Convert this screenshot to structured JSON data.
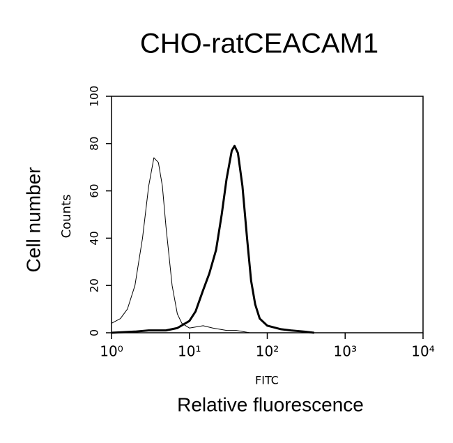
{
  "chart_data": {
    "type": "line",
    "title": "CHO-ratCEACAM1",
    "xlabel": "FITC",
    "ylabel": "Counts",
    "annotations": [
      "Cell number",
      "Relative fluorescence"
    ],
    "xscale": "log",
    "xlim": [
      1,
      10000
    ],
    "xticks": [
      {
        "value": 1,
        "label": "10⁰"
      },
      {
        "value": 10,
        "label": "10¹"
      },
      {
        "value": 100,
        "label": "10²"
      },
      {
        "value": 1000,
        "label": "10³"
      },
      {
        "value": 10000,
        "label": "10⁴"
      }
    ],
    "ylim": [
      0,
      100
    ],
    "yticks": [
      0,
      20,
      40,
      60,
      80,
      100
    ],
    "grid": false,
    "series": [
      {
        "color": "#000000",
        "width": 1,
        "x": [
          1,
          1.3,
          1.6,
          2,
          2.5,
          3,
          3.5,
          4,
          4.5,
          5,
          6,
          7,
          8,
          10,
          15,
          20,
          30,
          40,
          60,
          100
        ],
        "values": [
          4,
          6,
          10,
          20,
          40,
          62,
          74,
          72,
          62,
          45,
          20,
          8,
          4,
          2,
          3,
          2,
          1,
          1,
          0,
          0
        ]
      },
      {
        "color": "#000000",
        "width": 3,
        "x": [
          1,
          2,
          3,
          5,
          7,
          10,
          12,
          15,
          18,
          22,
          26,
          30,
          35,
          38,
          42,
          48,
          55,
          62,
          70,
          80,
          100,
          150,
          200,
          300,
          400
        ],
        "values": [
          0,
          0.5,
          1,
          1,
          2,
          5,
          9,
          18,
          25,
          35,
          50,
          65,
          77,
          79,
          76,
          62,
          40,
          22,
          12,
          6,
          3,
          1.5,
          1,
          0.5,
          0
        ]
      }
    ]
  }
}
